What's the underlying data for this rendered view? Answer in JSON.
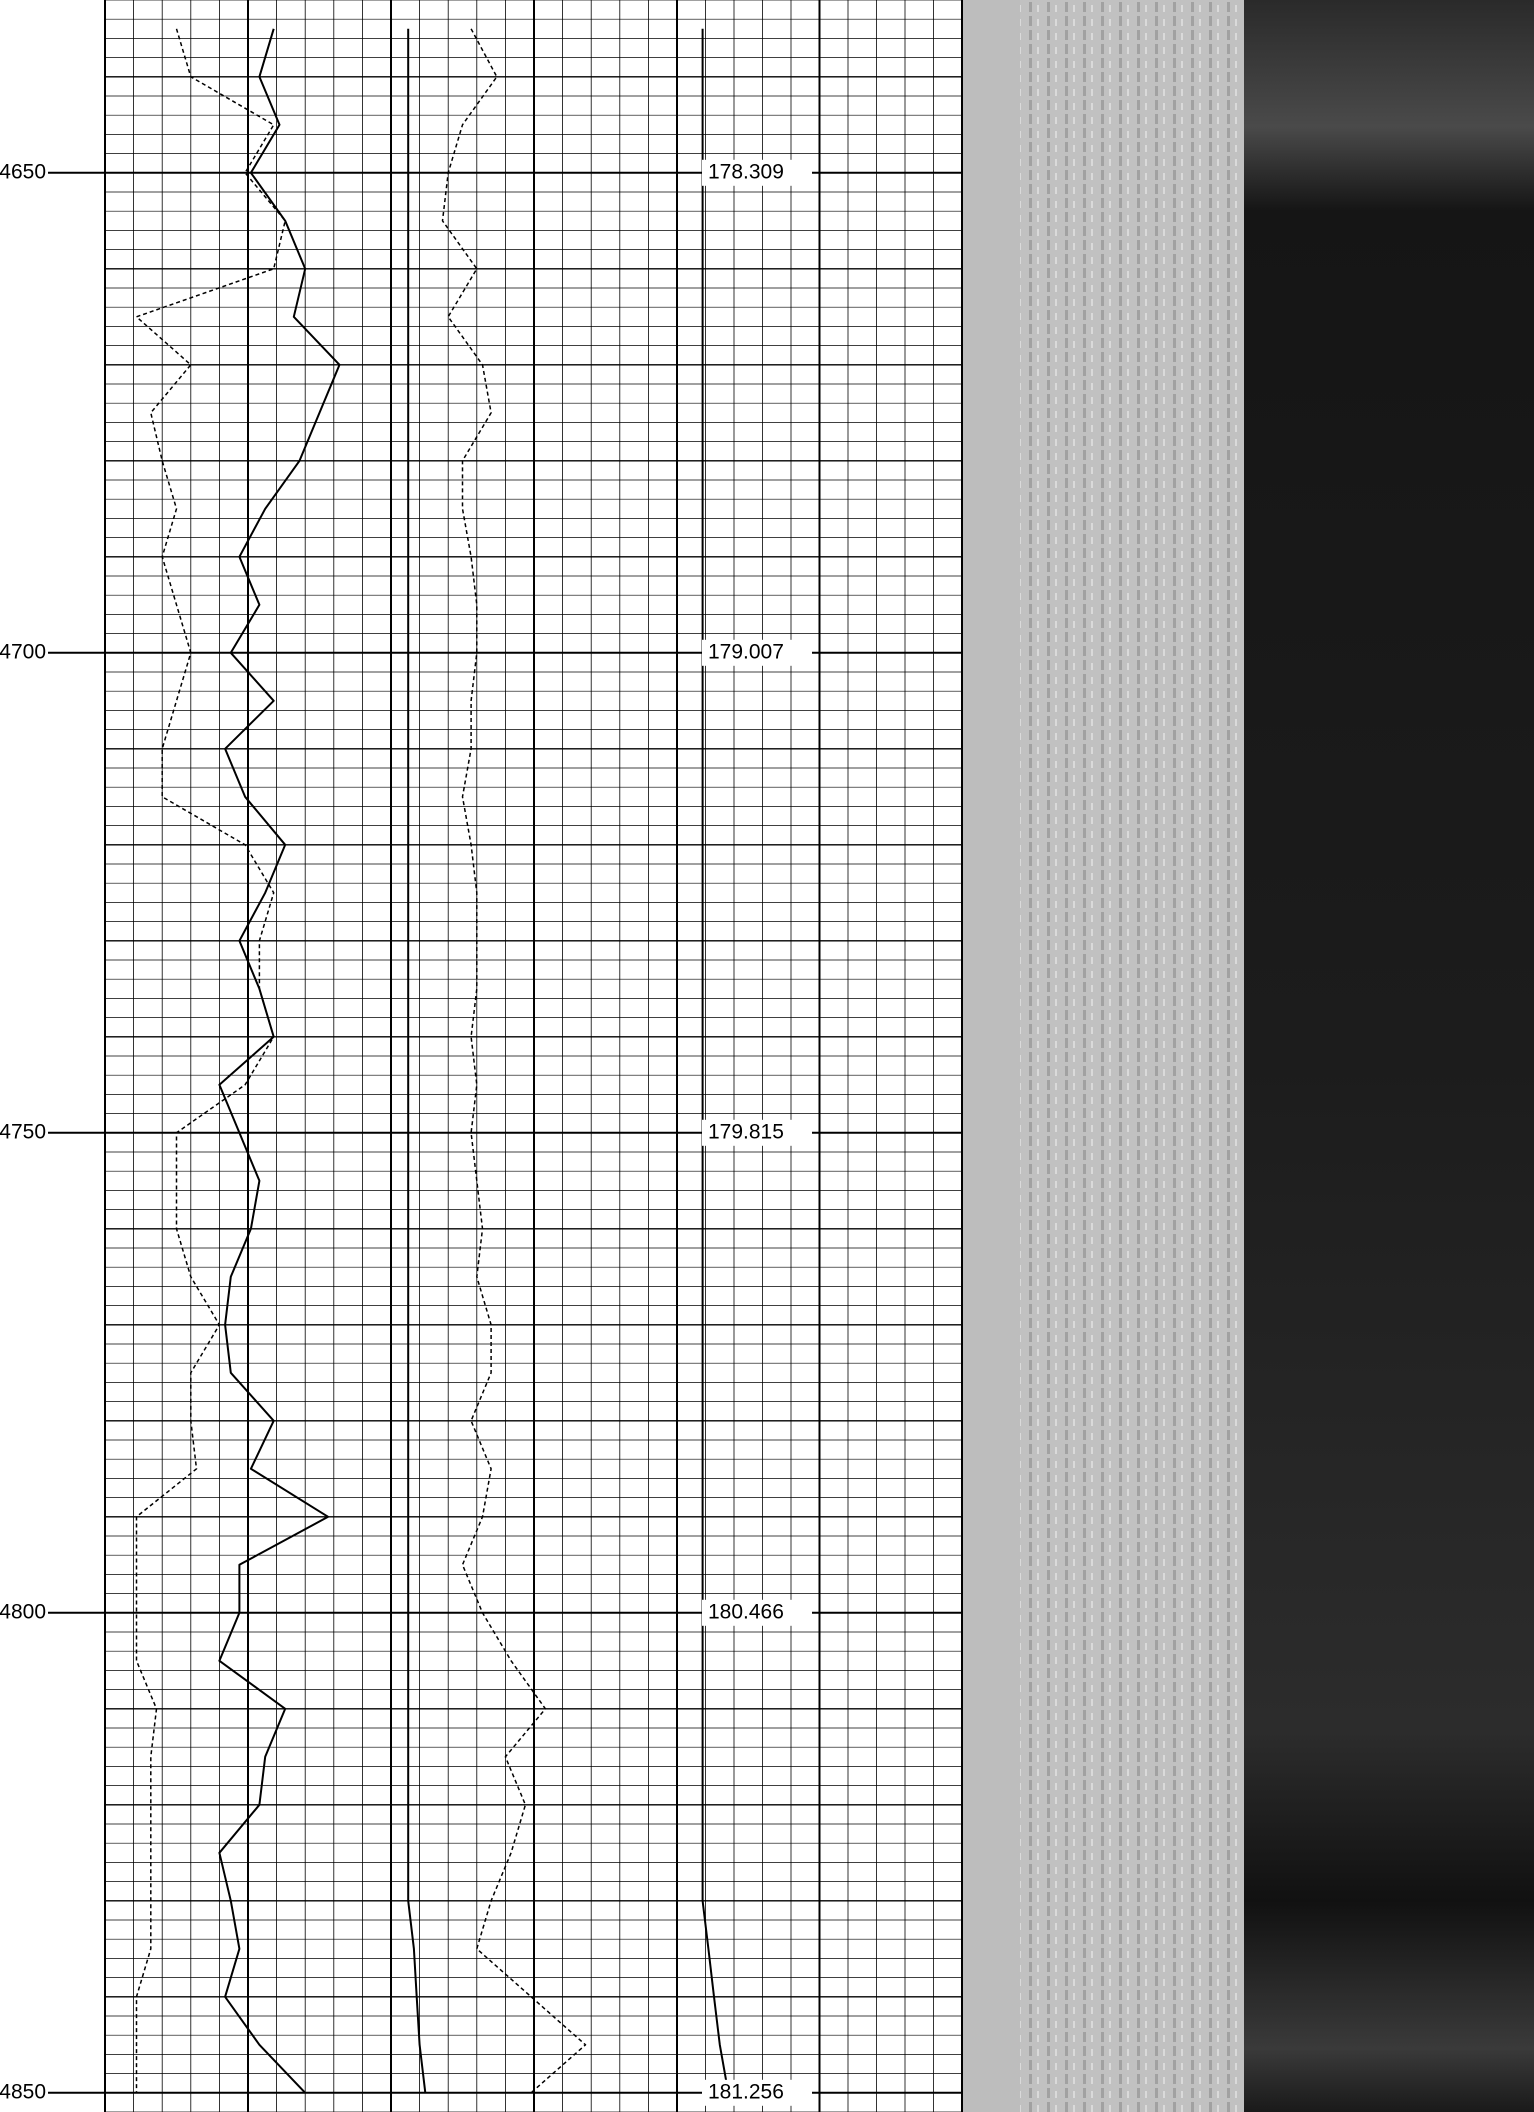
{
  "chart_data": {
    "type": "well-log",
    "ylim": [
      4632,
      4852
    ],
    "yticks": [
      4650,
      4700,
      4750,
      4800,
      4850
    ],
    "minor_grid_step": 2,
    "medium_grid_step": 10,
    "xlim": [
      0,
      100
    ],
    "xticks": [
      0,
      10,
      20,
      30,
      40,
      50,
      60,
      70,
      80,
      90,
      100
    ],
    "grid": true,
    "curve_labels": [
      178.309,
      179.007,
      179.815,
      180.466,
      181.256
    ],
    "x": [
      4635,
      4640,
      4645,
      4650,
      4655,
      4660,
      4665,
      4670,
      4675,
      4680,
      4685,
      4690,
      4695,
      4700,
      4705,
      4710,
      4715,
      4720,
      4725,
      4730,
      4735,
      4740,
      4745,
      4750,
      4755,
      4760,
      4765,
      4770,
      4775,
      4780,
      4785,
      4790,
      4795,
      4800,
      4805,
      4810,
      4815,
      4820,
      4825,
      4830,
      4835,
      4840,
      4845,
      4850
    ],
    "series": [
      {
        "track": 0,
        "dashed": false,
        "color": "#000000",
        "values": [
          59,
          54,
          61,
          51,
          63,
          70,
          66,
          82,
          75,
          68,
          56,
          47,
          54,
          44,
          59,
          42,
          49,
          63,
          56,
          47,
          54,
          59,
          40,
          47,
          54,
          51,
          44,
          42,
          44,
          59,
          51,
          78,
          47,
          47,
          40,
          63,
          56,
          54,
          40,
          44,
          47,
          42,
          54,
          70
        ]
      },
      {
        "track": 0,
        "dashed": true,
        "color": "#000000",
        "values": [
          25,
          30,
          59,
          49,
          63,
          59,
          11,
          30,
          16,
          20,
          25,
          20,
          25,
          30,
          25,
          20,
          20,
          49,
          59,
          54,
          54,
          59,
          49,
          25,
          25,
          25,
          30,
          40,
          30,
          30,
          32,
          11,
          11,
          11,
          11,
          18,
          16,
          16,
          16,
          16,
          16,
          11,
          11,
          11
        ]
      },
      {
        "track": 1,
        "dashed": false,
        "color": "#000000",
        "values": [
          6,
          6,
          6,
          6,
          6,
          6,
          6,
          6,
          6,
          6,
          6,
          6,
          6,
          6,
          6,
          6,
          6,
          6,
          6,
          6,
          6,
          6,
          6,
          6,
          6,
          6,
          6,
          6,
          6,
          6,
          6,
          6,
          6,
          6,
          6,
          6,
          6,
          6,
          6,
          6,
          8,
          9,
          10,
          12
        ]
      },
      {
        "track": 1,
        "dashed": true,
        "color": "#000000",
        "values": [
          28,
          37,
          25,
          20,
          18,
          30,
          20,
          32,
          35,
          25,
          25,
          28,
          30,
          30,
          28,
          28,
          25,
          28,
          30,
          30,
          30,
          28,
          30,
          28,
          30,
          32,
          30,
          35,
          35,
          28,
          35,
          32,
          25,
          32,
          42,
          54,
          40,
          47,
          42,
          35,
          30,
          49,
          68,
          49
        ]
      },
      {
        "track": 2,
        "dashed": false,
        "color": "#000000",
        "values": [
          9,
          9,
          9,
          9,
          9,
          9,
          9,
          9,
          9,
          9,
          9,
          9,
          9,
          9,
          9,
          9,
          9,
          9,
          9,
          9,
          9,
          9,
          9,
          9,
          9,
          9,
          9,
          9,
          9,
          9,
          9,
          9,
          9,
          9,
          9,
          9,
          9,
          9,
          9,
          9,
          11,
          13,
          15,
          18
        ]
      }
    ]
  }
}
